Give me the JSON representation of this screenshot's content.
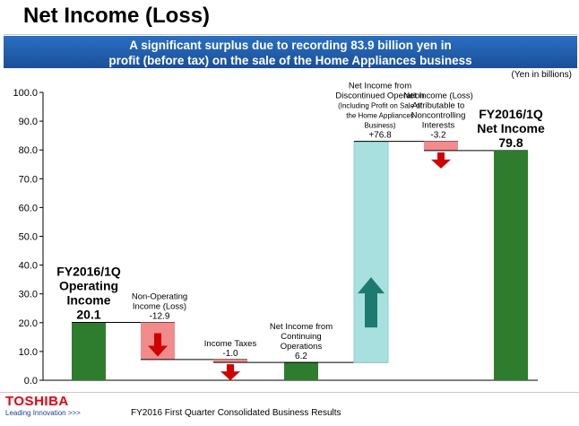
{
  "page": {
    "title": "Net Income (Loss)",
    "banner_line1": "A significant surplus due to recording 83.9 billion yen in",
    "banner_line2": "profit (before tax) on the sale of the Home Appliances business",
    "unit_note": "(Yen in billions)",
    "footer_text": "FY2016 First Quarter Consolidated Business Results",
    "logo_name": "TOSHIBA",
    "logo_tagline": "Leading Innovation >>>"
  },
  "colors": {
    "banner": "#1f5aa8",
    "positive_bar": "#2e7d2e",
    "negative_bar": "#f28b8b",
    "discontinued_bar": "#a8e0e0",
    "down_arrow": "#d00000",
    "up_arrow": "#1e7a70"
  },
  "chart_data": {
    "type": "bar",
    "subtype": "waterfall",
    "ylim": [
      0,
      100
    ],
    "yticks": [
      "0.0",
      "10.0",
      "20.0",
      "30.0",
      "40.0",
      "50.0",
      "60.0",
      "70.0",
      "80.0",
      "90.0",
      "100.0"
    ],
    "grid": false,
    "bars": [
      {
        "label_lines": [
          "FY2016/1Q",
          "Operating",
          "Income",
          "20.1"
        ],
        "label_style": "big",
        "kind": "total",
        "start": 0,
        "end": 20.1,
        "arrow": "none",
        "label_place": "above"
      },
      {
        "label_lines": [
          "Non-Operating",
          "Income (Loss)",
          "-12.9"
        ],
        "label_style": "small",
        "kind": "decrease",
        "start": 20.1,
        "end": 7.2,
        "arrow": "down",
        "label_place": "above"
      },
      {
        "label_lines": [
          "Income Taxes",
          "-1.0"
        ],
        "label_style": "small",
        "kind": "decrease",
        "start": 7.2,
        "end": 6.2,
        "arrow": "down",
        "label_place": "above"
      },
      {
        "label_lines": [
          "Net Income from",
          "Continuing",
          "Operations",
          "6.2"
        ],
        "label_style": "small",
        "kind": "subtotal",
        "start": 0,
        "end": 6.2,
        "arrow": "none",
        "label_place": "above"
      },
      {
        "label_lines": [
          "Net Income from",
          "Discontinued Operation",
          "(Including Profit on Sale of",
          "the Home Appliances",
          "Business)",
          "+76.8"
        ],
        "label_style": "small",
        "kind": "increase",
        "start": 6.2,
        "end": 83.0,
        "arrow": "up",
        "label_place": "above"
      },
      {
        "label_lines": [
          "Net Income (Loss)",
          "Attributable to",
          "Noncontrolling",
          "Interests",
          "-3.2"
        ],
        "label_style": "small",
        "kind": "decrease",
        "start": 83.0,
        "end": 79.8,
        "arrow": "down",
        "label_place": "above"
      },
      {
        "label_lines": [
          "FY2016/1Q",
          "Net Income",
          "79.8"
        ],
        "label_style": "big",
        "kind": "total",
        "start": 0,
        "end": 79.8,
        "arrow": "none",
        "label_place": "above"
      }
    ]
  }
}
